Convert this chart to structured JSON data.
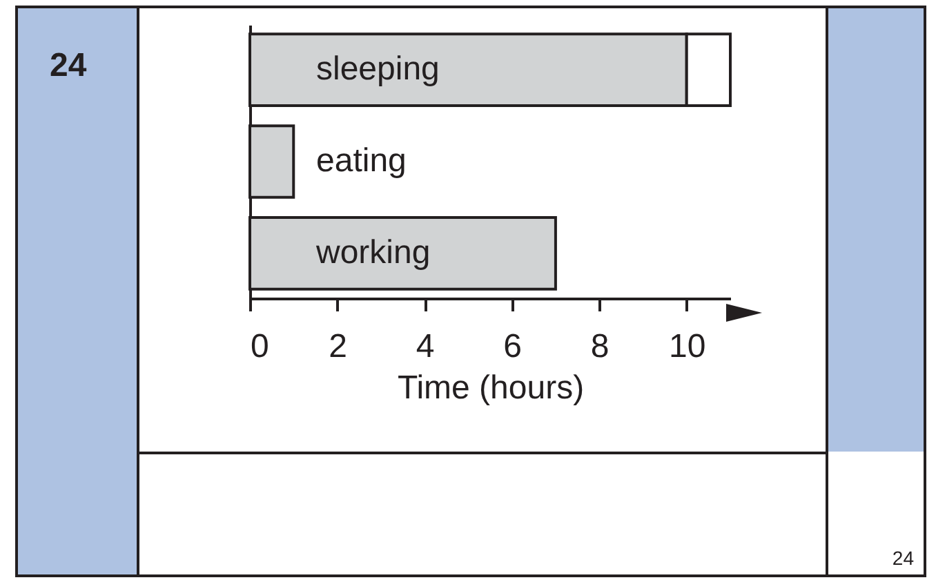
{
  "chart_data": {
    "type": "bar",
    "orientation": "horizontal",
    "stacked": true,
    "categories": [
      "sleeping",
      "eating",
      "working"
    ],
    "series": [
      {
        "color": "#d1d3d4",
        "values": [
          10,
          1,
          7
        ]
      },
      {
        "color": "#ffffff",
        "values": [
          1,
          null,
          null
        ]
      }
    ],
    "xlabel": "Time (hours)",
    "xlim": [
      0,
      11
    ],
    "xticks": [
      0,
      2,
      4,
      6,
      8,
      10
    ],
    "grid": false,
    "annotations": [
      "24",
      "24"
    ]
  }
}
